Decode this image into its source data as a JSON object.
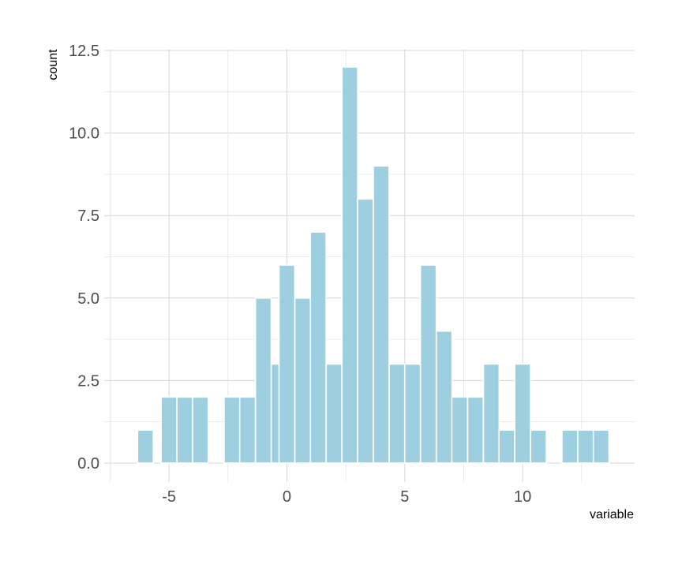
{
  "chart_data": {
    "type": "bar",
    "title": "",
    "xlabel": "variable",
    "ylabel": "count",
    "bins": [
      {
        "x": -6.0,
        "count": 1
      },
      {
        "x": -5.0,
        "count": 2
      },
      {
        "x": -4.33,
        "count": 2
      },
      {
        "x": -3.67,
        "count": 2
      },
      {
        "x": -3.0,
        "count": 0
      },
      {
        "x": -2.33,
        "count": 2
      },
      {
        "x": -1.67,
        "count": 2
      },
      {
        "x": -1.0,
        "count": 5
      },
      {
        "x": -0.33,
        "count": 3
      },
      {
        "x": 0.0,
        "count": 6
      },
      {
        "x": 0.67,
        "count": 5
      },
      {
        "x": 1.33,
        "count": 7
      },
      {
        "x": 2.0,
        "count": 3
      },
      {
        "x": 2.67,
        "count": 12
      },
      {
        "x": 3.33,
        "count": 8
      },
      {
        "x": 4.0,
        "count": 9
      },
      {
        "x": 4.67,
        "count": 3
      },
      {
        "x": 5.33,
        "count": 3
      },
      {
        "x": 6.0,
        "count": 6
      },
      {
        "x": 6.67,
        "count": 4
      },
      {
        "x": 7.33,
        "count": 2
      },
      {
        "x": 8.0,
        "count": 2
      },
      {
        "x": 8.67,
        "count": 3
      },
      {
        "x": 9.33,
        "count": 1
      },
      {
        "x": 10.0,
        "count": 3
      },
      {
        "x": 10.67,
        "count": 1
      },
      {
        "x": 11.33,
        "count": 0
      },
      {
        "x": 12.0,
        "count": 1
      },
      {
        "x": 12.67,
        "count": 1
      },
      {
        "x": 13.33,
        "count": 1
      }
    ],
    "xlim": [
      -7.75,
      14.75
    ],
    "ylim": [
      0,
      12.5
    ],
    "xticks": [
      -5,
      0,
      5,
      10
    ],
    "xtick_labels": [
      "-5",
      "0",
      "5",
      "10"
    ],
    "yticks": [
      0,
      2.5,
      5,
      7.5,
      10,
      12.5
    ],
    "ytick_labels": [
      "0.0",
      "2.5",
      "5.0",
      "7.5",
      "10.0",
      "12.5"
    ],
    "grid": true,
    "legend": false,
    "bar_color": "#9ecfe0",
    "grid_color": "#d6d6d6"
  }
}
